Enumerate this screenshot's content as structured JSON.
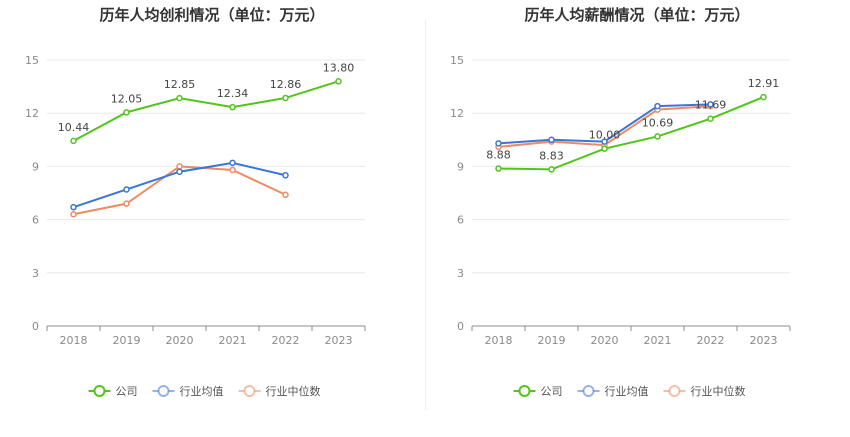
{
  "chart_data": [
    {
      "type": "line",
      "title": "历年人均创利情况（单位：万元）",
      "categories": [
        "2018",
        "2019",
        "2020",
        "2021",
        "2022",
        "2023"
      ],
      "ylim": [
        0,
        15
      ],
      "yticks": [
        0,
        3,
        6,
        9,
        12,
        15
      ],
      "grid": true,
      "legend": "bottom",
      "series": [
        {
          "name": "公司",
          "color": "#52c41a",
          "values": [
            10.44,
            12.05,
            12.85,
            12.34,
            12.86,
            13.8
          ],
          "labels": [
            "10.44",
            "12.05",
            "12.85",
            "12.34",
            "12.86",
            "13.80"
          ]
        },
        {
          "name": "行业均值",
          "color": "#3a75d8",
          "values": [
            6.7,
            7.7,
            8.7,
            9.2,
            8.5,
            null
          ]
        },
        {
          "name": "行业中位数",
          "color": "#ee8b62",
          "values": [
            6.3,
            6.9,
            9.0,
            8.8,
            7.4,
            null
          ]
        }
      ]
    },
    {
      "type": "line",
      "title": "历年人均薪酬情况（单位：万元）",
      "categories": [
        "2018",
        "2019",
        "2020",
        "2021",
        "2022",
        "2023"
      ],
      "ylim": [
        0,
        15
      ],
      "yticks": [
        0,
        3,
        6,
        9,
        12,
        15
      ],
      "grid": true,
      "legend": "bottom",
      "series": [
        {
          "name": "公司",
          "color": "#52c41a",
          "values": [
            8.88,
            8.83,
            10.0,
            10.69,
            11.69,
            12.91
          ],
          "labels": [
            "8.88",
            "8.83",
            "10.00",
            "10.69",
            "11.69",
            "12.91"
          ]
        },
        {
          "name": "行业均值",
          "color": "#3a75d8",
          "values": [
            10.3,
            10.5,
            10.4,
            12.4,
            12.5,
            null
          ]
        },
        {
          "name": "行业中位数",
          "color": "#ee8b62",
          "values": [
            10.1,
            10.4,
            10.2,
            12.2,
            12.4,
            null
          ]
        }
      ]
    }
  ]
}
